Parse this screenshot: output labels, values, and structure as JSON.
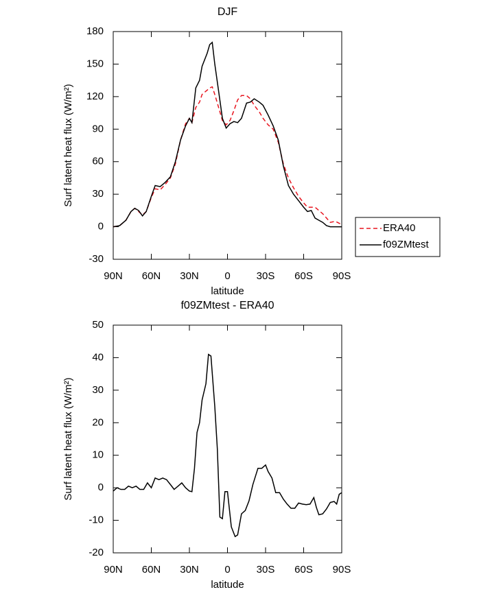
{
  "chart_data": [
    {
      "type": "line",
      "title": "DJF",
      "xlabel": "latitude",
      "ylabel": "Surf latent heat flux (W/m²)",
      "x": [
        90,
        85,
        80,
        76,
        73,
        70,
        67,
        64,
        60,
        57,
        53,
        49,
        45,
        41,
        37,
        33,
        30,
        28,
        25,
        22,
        20,
        16,
        14,
        12,
        10,
        7,
        4,
        1,
        -2,
        -5,
        -8,
        -11,
        -15,
        -18,
        -21,
        -25,
        -28,
        -32,
        -36,
        -40,
        -44,
        -48,
        -52,
        -56,
        -60,
        -63,
        -66,
        -69,
        -72,
        -75,
        -78,
        -81,
        -85,
        -90
      ],
      "series": [
        {
          "name": "ERA40",
          "color": "#e8141e",
          "line_style": "dashed",
          "values": [
            0,
            1,
            6,
            14,
            17,
            14,
            11,
            14,
            27,
            35,
            34,
            39,
            45,
            58,
            80,
            95,
            100,
            96,
            110,
            115,
            122,
            126,
            128,
            129,
            122,
            110,
            98,
            94,
            98,
            107,
            117,
            121,
            121,
            118,
            112,
            106,
            100,
            94,
            90,
            78,
            58,
            45,
            36,
            28,
            22,
            18,
            18,
            18,
            15,
            12,
            8,
            4,
            5,
            2
          ]
        },
        {
          "name": "f09ZMtest",
          "color": "#000000",
          "line_style": "solid",
          "values": [
            0,
            1,
            6,
            14,
            17,
            15,
            10,
            14,
            28,
            38,
            37,
            41,
            46,
            60,
            80,
            93,
            100,
            96,
            128,
            135,
            148,
            160,
            168,
            170,
            150,
            125,
            100,
            91,
            95,
            97,
            96,
            100,
            114,
            115,
            118,
            115,
            112,
            103,
            93,
            80,
            56,
            38,
            30,
            24,
            18,
            14,
            15,
            8,
            6,
            4,
            1,
            0,
            0,
            0
          ]
        }
      ],
      "xlim": [
        90,
        -90
      ],
      "xticks": [
        {
          "value": 90,
          "label": "90N"
        },
        {
          "value": 60,
          "label": "60N"
        },
        {
          "value": 30,
          "label": "30N"
        },
        0,
        {
          "value": -30,
          "label": "30S"
        },
        {
          "value": -60,
          "label": "60S"
        },
        {
          "value": -90,
          "label": "90S"
        }
      ],
      "ylim": [
        -30,
        180
      ],
      "yticks": [
        -30,
        0,
        30,
        60,
        90,
        120,
        150,
        180
      ],
      "legend": "outside-right"
    },
    {
      "type": "line",
      "title": "f09ZMtest - ERA40",
      "xlabel": "latitude",
      "ylabel": "Surf latent heat flux (W/m²)",
      "x": [
        90,
        87,
        84,
        81,
        78,
        75,
        72,
        69,
        66,
        63,
        60,
        57,
        54,
        51,
        48,
        45,
        42,
        39,
        36,
        33,
        30,
        28,
        26,
        24,
        22,
        20,
        17,
        15,
        13,
        10,
        8,
        6,
        4,
        2,
        0,
        -3,
        -6,
        -8,
        -11,
        -14,
        -17,
        -20,
        -24,
        -27,
        -30,
        -32,
        -35,
        -38,
        -41,
        -44,
        -47,
        -50,
        -53,
        -56,
        -59,
        -62,
        -65,
        -68,
        -70,
        -72,
        -75,
        -78,
        -81,
        -84,
        -86,
        -88,
        -90
      ],
      "color": "#000000",
      "values": [
        -1,
        0,
        -0.5,
        -0.5,
        0.5,
        0,
        0.5,
        -0.5,
        -0.5,
        1.5,
        0,
        3,
        2.5,
        3,
        2.5,
        1,
        -0.5,
        0.5,
        1.5,
        0,
        -1,
        -1.2,
        6,
        17,
        20,
        27,
        32,
        41,
        40.5,
        25,
        12,
        -9,
        -9.5,
        -1.2,
        -1.2,
        -12,
        -15,
        -14.5,
        -8,
        -7,
        -4,
        1,
        6,
        6,
        7,
        5,
        3,
        -1.5,
        -1.5,
        -3.5,
        -5,
        -6.3,
        -6.3,
        -4.7,
        -5,
        -5.2,
        -5,
        -3,
        -6,
        -8.3,
        -8,
        -6.5,
        -4.5,
        -4.2,
        -5,
        -2,
        -1.5
      ],
      "xlim": [
        90,
        -90
      ],
      "xticks": [
        {
          "value": 90,
          "label": "90N"
        },
        {
          "value": 60,
          "label": "60N"
        },
        {
          "value": 30,
          "label": "30N"
        },
        0,
        {
          "value": -30,
          "label": "30S"
        },
        {
          "value": -60,
          "label": "60S"
        },
        {
          "value": -90,
          "label": "90S"
        }
      ],
      "ylim": [
        -20,
        50
      ],
      "yticks": [
        -20,
        -10,
        0,
        10,
        20,
        30,
        40,
        50
      ]
    }
  ]
}
